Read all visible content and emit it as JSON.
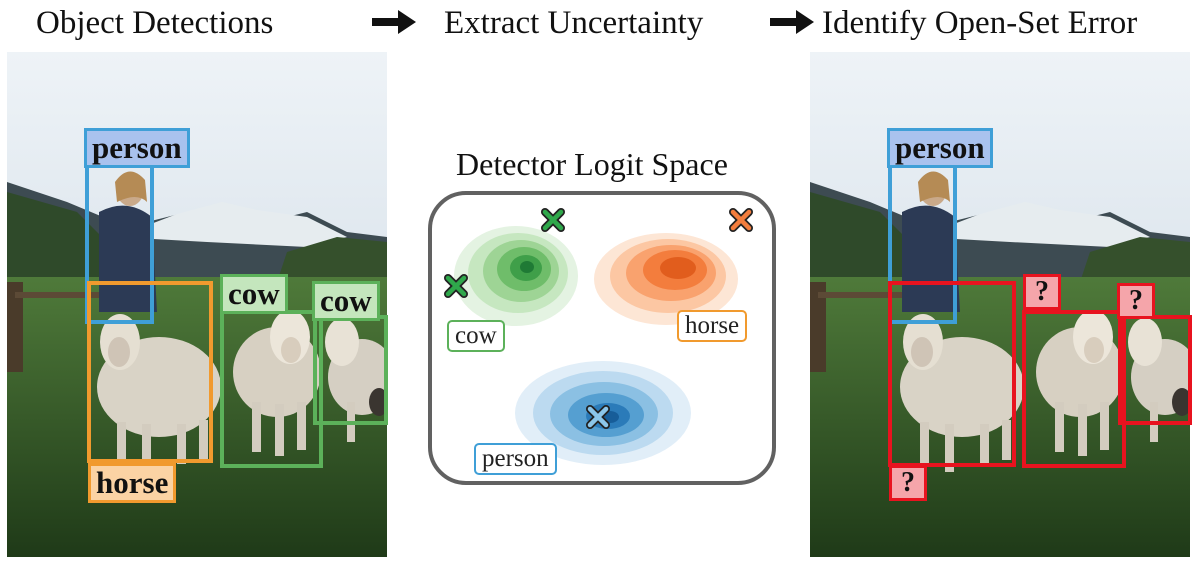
{
  "headers": {
    "step1": "Object Detections",
    "step2": "Extract Uncertainty",
    "step3": "Identify Open-Set Error"
  },
  "colors": {
    "person": "#3f9fd7",
    "horse": "#f19a2e",
    "cow": "#5cb15a",
    "error": "#e8131f",
    "person_fill": "#a9c2ee",
    "horse_fill": "#fbd3a4",
    "cow_fill": "#c4e6bd",
    "error_fill": "#f5a5aa"
  },
  "left_panel": {
    "labels": {
      "person": "person",
      "horse": "horse",
      "cow1": "cow",
      "cow2": "cow"
    }
  },
  "middle_panel": {
    "title": "Detector Logit Space",
    "clusters": {
      "cow": "cow",
      "horse": "horse",
      "person": "person"
    }
  },
  "right_panel": {
    "labels": {
      "person": "person",
      "unknown": "?"
    }
  }
}
